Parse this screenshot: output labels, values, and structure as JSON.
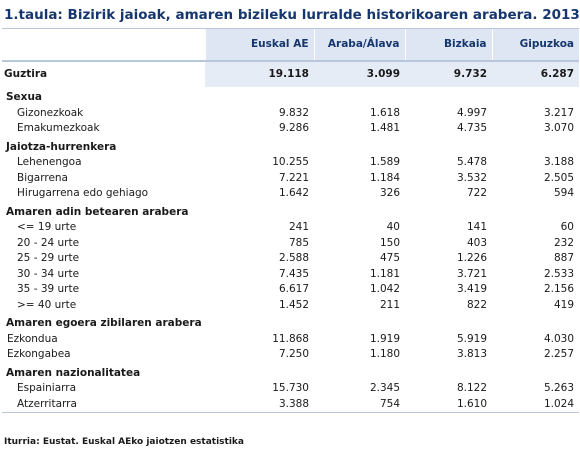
{
  "title": "1.taula: Bizirik jaioak, amaren bizileku lurralde historikoaren arabera. 2013",
  "columns": [
    "Euskal AE",
    "Araba/Álava",
    "Bizkaia",
    "Gipuzkoa"
  ],
  "total": {
    "label": "Guztira",
    "values": [
      "19.118",
      "3.099",
      "9.732",
      "6.287"
    ]
  },
  "sections": [
    {
      "title": "Sexua",
      "rows": [
        {
          "label": "Gizonezkoak",
          "values": [
            "9.832",
            "1.618",
            "4.997",
            "3.217"
          ]
        },
        {
          "label": "Emakumezkoak",
          "values": [
            "9.286",
            "1.481",
            "4.735",
            "3.070"
          ]
        }
      ]
    },
    {
      "title": "Jaiotza-hurrenkera",
      "rows": [
        {
          "label": "Lehenengoa",
          "values": [
            "10.255",
            "1.589",
            "5.478",
            "3.188"
          ]
        },
        {
          "label": "Bigarrena",
          "values": [
            "7.221",
            "1.184",
            "3.532",
            "2.505"
          ]
        },
        {
          "label": "Hirugarrena edo gehiago",
          "values": [
            "1.642",
            "326",
            "722",
            "594"
          ]
        }
      ]
    },
    {
      "title": "Amaren adin betearen arabera",
      "rows": [
        {
          "label": "<= 19 urte",
          "values": [
            "241",
            "40",
            "141",
            "60"
          ]
        },
        {
          "label": "20 - 24 urte",
          "values": [
            "785",
            "150",
            "403",
            "232"
          ]
        },
        {
          "label": "25 - 29 urte",
          "values": [
            "2.588",
            "475",
            "1.226",
            "887"
          ]
        },
        {
          "label": "30 - 34 urte",
          "values": [
            "7.435",
            "1.181",
            "3.721",
            "2.533"
          ]
        },
        {
          "label": "35 - 39 urte",
          "values": [
            "6.617",
            "1.042",
            "3.419",
            "2.156"
          ]
        },
        {
          "label": ">= 40 urte",
          "values": [
            "1.452",
            "211",
            "822",
            "419"
          ]
        }
      ]
    },
    {
      "title": "Amaren egoera zibilaren arabera",
      "rows": [
        {
          "label": "Ezkondua",
          "values": [
            "11.868",
            "1.919",
            "5.919",
            "4.030"
          ]
        },
        {
          "label": "Ezkongabea",
          "values": [
            "7.250",
            "1.180",
            "3.813",
            "2.257"
          ]
        }
      ]
    },
    {
      "title": "Amaren nazionalitatea",
      "rows": [
        {
          "label": "Espainiarra",
          "values": [
            "15.730",
            "2.345",
            "8.122",
            "5.263"
          ]
        },
        {
          "label": "Atzerritarra",
          "values": [
            "3.388",
            "754",
            "1.610",
            "1.024"
          ]
        }
      ]
    }
  ],
  "source": "Iturria: Eustat. Euskal AEko jaiotzen estatistika"
}
